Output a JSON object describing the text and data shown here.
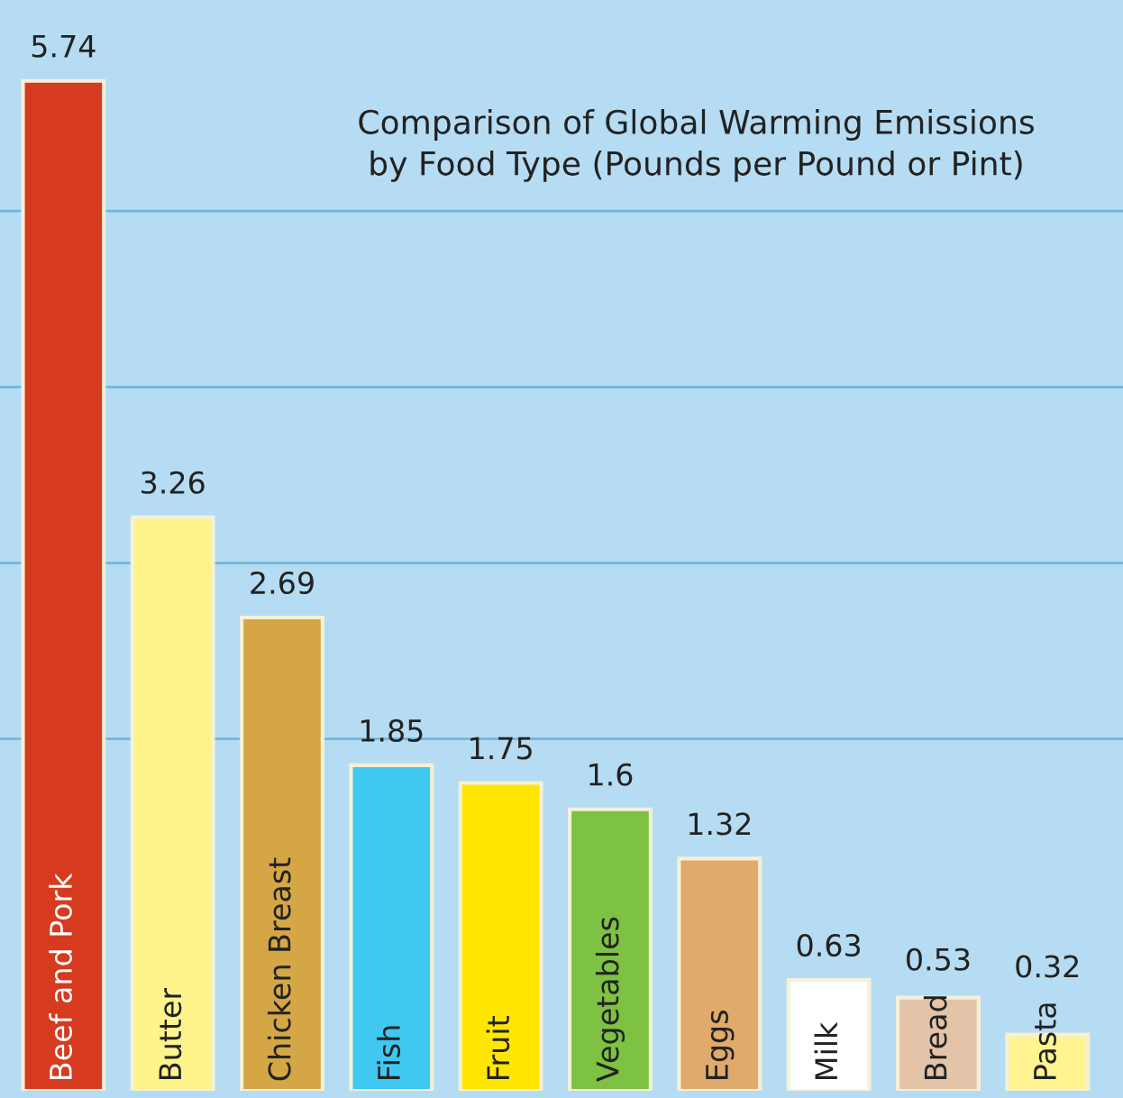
{
  "chart_data": {
    "type": "bar",
    "title": "Comparison of Global Warming Emissions\nby Food Type (Pounds per Pound or Pint)",
    "categories": [
      "Beef and Pork",
      "Butter",
      "Chicken Breast",
      "Fish",
      "Fruit",
      "Vegetables",
      "Eggs",
      "Milk",
      "Bread",
      "Pasta"
    ],
    "values": [
      5.74,
      3.26,
      2.69,
      1.85,
      1.75,
      1.6,
      1.32,
      0.63,
      0.53,
      0.32
    ],
    "colors": [
      "#d63a1f",
      "#fff48c",
      "#d4a645",
      "#40c8f0",
      "#ffe600",
      "#7dc242",
      "#e0aa6a",
      "#ffffff",
      "#e3c4a8",
      "#fff490"
    ],
    "ylim": [
      0,
      6.2
    ],
    "yticks": [
      {
        "value": 2,
        "label": null
      },
      {
        "value": 3,
        "label": null
      },
      {
        "value": 4,
        "label": null
      },
      {
        "value": 5,
        "label": null
      }
    ],
    "grid": "y",
    "data_labels": true
  }
}
